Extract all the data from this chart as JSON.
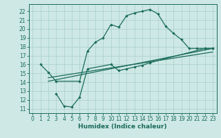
{
  "xlabel": "Humidex (Indice chaleur)",
  "bg_color": "#cde8e5",
  "line_color": "#1a6b5a",
  "grid_color": "#aacfcc",
  "xlim": [
    -0.5,
    23.5
  ],
  "ylim": [
    10.5,
    22.8
  ],
  "yticks": [
    11,
    12,
    13,
    14,
    15,
    16,
    17,
    18,
    19,
    20,
    21,
    22
  ],
  "xticks": [
    0,
    1,
    2,
    3,
    4,
    5,
    6,
    7,
    8,
    9,
    10,
    11,
    12,
    13,
    14,
    15,
    16,
    17,
    18,
    19,
    20,
    21,
    22,
    23
  ],
  "line1_x": [
    1,
    2,
    3,
    6,
    7,
    8,
    9,
    10,
    11,
    12,
    13,
    14,
    15,
    16,
    17,
    18,
    19,
    20,
    21,
    22,
    23
  ],
  "line1_y": [
    16.0,
    15.1,
    14.1,
    14.1,
    17.5,
    18.5,
    19.0,
    20.5,
    20.2,
    21.5,
    21.8,
    22.0,
    22.2,
    21.7,
    20.3,
    19.5,
    18.8,
    17.8,
    17.8,
    17.8,
    17.8
  ],
  "line2_x": [
    3,
    4,
    5,
    6,
    7,
    10,
    11,
    12,
    13,
    14,
    15,
    22,
    23
  ],
  "line2_y": [
    12.7,
    11.3,
    11.2,
    12.3,
    15.5,
    16.0,
    15.3,
    15.5,
    15.7,
    15.9,
    16.2,
    17.8,
    17.8
  ],
  "line3_x": [
    2,
    23
  ],
  "line3_y": [
    14.1,
    17.8
  ],
  "line4_x": [
    2,
    23
  ],
  "line4_y": [
    14.5,
    17.4
  ],
  "tick_fontsize": 5.5,
  "xlabel_fontsize": 6.5
}
